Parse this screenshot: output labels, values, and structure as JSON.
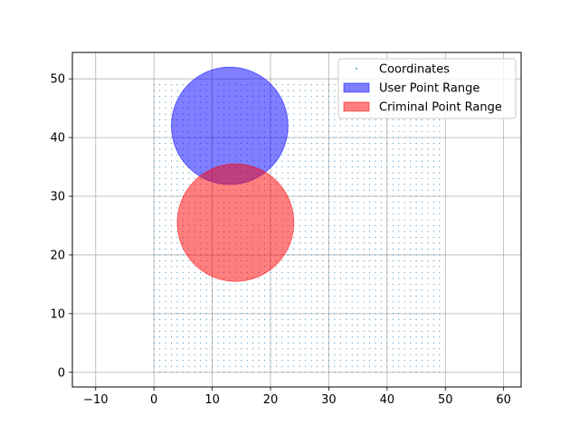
{
  "chart_data": {
    "type": "scatter",
    "title": "",
    "xlabel": "",
    "ylabel": "",
    "xlim": [
      -14,
      63
    ],
    "ylim": [
      -2.5,
      54.5
    ],
    "grid": true,
    "legend_placement": "top-right",
    "x_ticks": [
      -10,
      0,
      10,
      20,
      30,
      40,
      50,
      60
    ],
    "y_ticks": [
      0,
      10,
      20,
      30,
      40,
      50
    ],
    "series": [
      {
        "name": "Coordinates",
        "kind": "point-grid",
        "x_range": [
          0,
          49
        ],
        "y_range": [
          0,
          49
        ],
        "step": 1,
        "color": "#1f77b4"
      },
      {
        "name": "User Point Range",
        "kind": "circle",
        "center": [
          13,
          42
        ],
        "radius": 10,
        "color": "#0000ff",
        "alpha": 0.5
      },
      {
        "name": "Criminal Point Range",
        "kind": "circle",
        "center": [
          14,
          25.5
        ],
        "radius": 10,
        "color": "#ff0000",
        "alpha": 0.5
      }
    ]
  }
}
